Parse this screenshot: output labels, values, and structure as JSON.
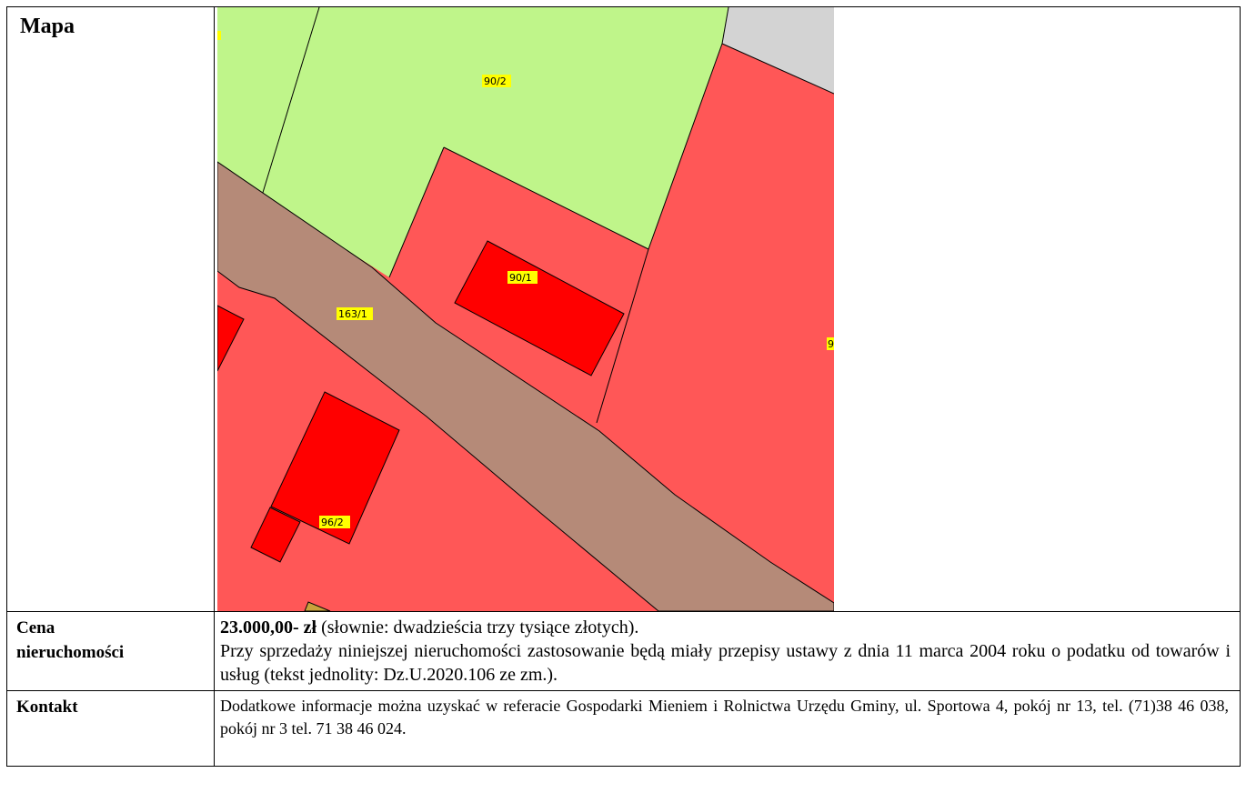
{
  "rows": {
    "map": {
      "label": "Mapa"
    },
    "price": {
      "label_line1": "Cena",
      "label_line2": "nieruchomości",
      "amount": "23.000,00- zł",
      "amount_words": " (słownie: dwadzieścia trzy tysiące złotych).",
      "note": "Przy sprzedaży niniejszej nieruchomości zastosowanie będą miały przepisy ustawy z dnia 11 marca 2004 roku o podatku od towarów i usług (tekst jednolity: Dz.U.2020.106 ze zm.)."
    },
    "contact": {
      "label": "Kontakt",
      "text": "Dodatkowe informacje można uzyskać w referacie Gospodarki Mieniem i Rolnictwa Urzędu Gminy, ul. Sportowa 4, pokój nr 13, tel. (71)38 46 038, pokój nr 3 tel. 71 38 46 024."
    }
  },
  "map": {
    "parcel_labels": [
      "90/2",
      "90/1",
      "163/1",
      "96/2",
      "9"
    ],
    "colors": {
      "green_parcel": "#bff58a",
      "red_parcel": "#ff5757",
      "building": "#ff0000",
      "road": "#b58a78",
      "gray_area": "#d3d3d3",
      "label_bg": "#ffff00"
    }
  }
}
